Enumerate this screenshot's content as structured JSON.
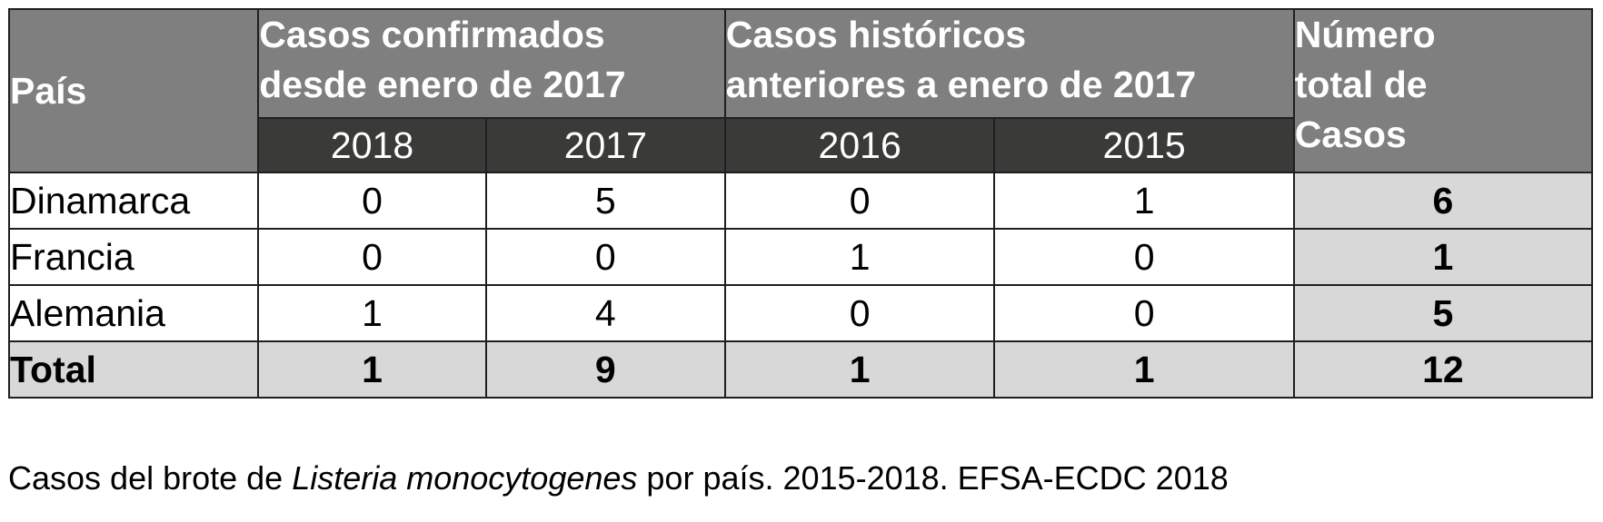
{
  "table": {
    "header": {
      "country": "País",
      "group_confirmed": [
        "Casos confirmados",
        "desde enero de 2017"
      ],
      "group_historic": [
        "Casos históricos",
        "anteriores a enero de 2017"
      ],
      "total_cases": [
        "Número",
        "total de",
        "Casos"
      ],
      "years": [
        "2018",
        "2017",
        "2016",
        "2015"
      ]
    },
    "rows": [
      {
        "country": "Dinamarca",
        "values": [
          "0",
          "5",
          "0",
          "1"
        ],
        "total": "6"
      },
      {
        "country": "Francia",
        "values": [
          "0",
          "0",
          "1",
          "0"
        ],
        "total": "1"
      },
      {
        "country": "Alemania",
        "values": [
          "1",
          "4",
          "0",
          "0"
        ],
        "total": "5"
      }
    ],
    "total_row": {
      "label": "Total",
      "values": [
        "1",
        "9",
        "1",
        "1"
      ],
      "total": "12"
    }
  },
  "caption": {
    "before": "Casos del brote de ",
    "species": "Listeria monocytogenes",
    "after": " por país. 2015-2018. EFSA-ECDC 2018"
  },
  "colors": {
    "header_bg": "#7f7f7f",
    "year_bg": "#3a3a38",
    "total_bg": "#d8d8d8"
  }
}
